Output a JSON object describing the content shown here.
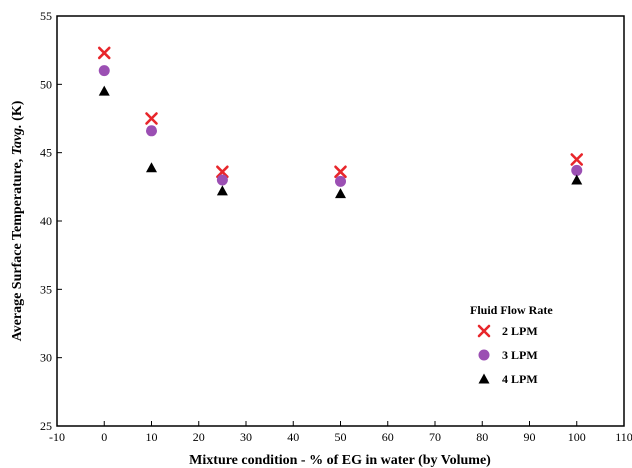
{
  "chart_data": {
    "type": "scatter",
    "xlabel": "Mixture condition - % of EG in water (by Volume)",
    "ylabel_prefix": "Average Surface Temperature, ",
    "ylabel_italic": "Tavg.",
    "ylabel_suffix": " (K)",
    "xlim": [
      -10,
      110
    ],
    "ylim": [
      25,
      55
    ],
    "xticks": [
      -10,
      0,
      10,
      20,
      30,
      40,
      50,
      60,
      70,
      80,
      90,
      100,
      110
    ],
    "yticks": [
      25,
      30,
      35,
      40,
      45,
      50,
      55
    ],
    "grid": false,
    "legend_title": "Fluid Flow Rate",
    "legend_position": "bottom-right",
    "series": [
      {
        "name": "2 LPM",
        "marker": "x",
        "color": "#e8262b",
        "x": [
          0,
          10,
          25,
          50,
          100
        ],
        "y": [
          52.3,
          47.5,
          43.6,
          43.6,
          44.5
        ]
      },
      {
        "name": "3 LPM",
        "marker": "circle",
        "color": "#9b4fb3",
        "x": [
          0,
          10,
          25,
          50,
          100
        ],
        "y": [
          51.0,
          46.6,
          43.0,
          42.9,
          43.7
        ]
      },
      {
        "name": "4 LPM",
        "marker": "triangle",
        "color": "#000000",
        "x": [
          0,
          10,
          25,
          50,
          100
        ],
        "y": [
          49.5,
          43.9,
          42.2,
          42.0,
          43.0
        ]
      }
    ]
  }
}
